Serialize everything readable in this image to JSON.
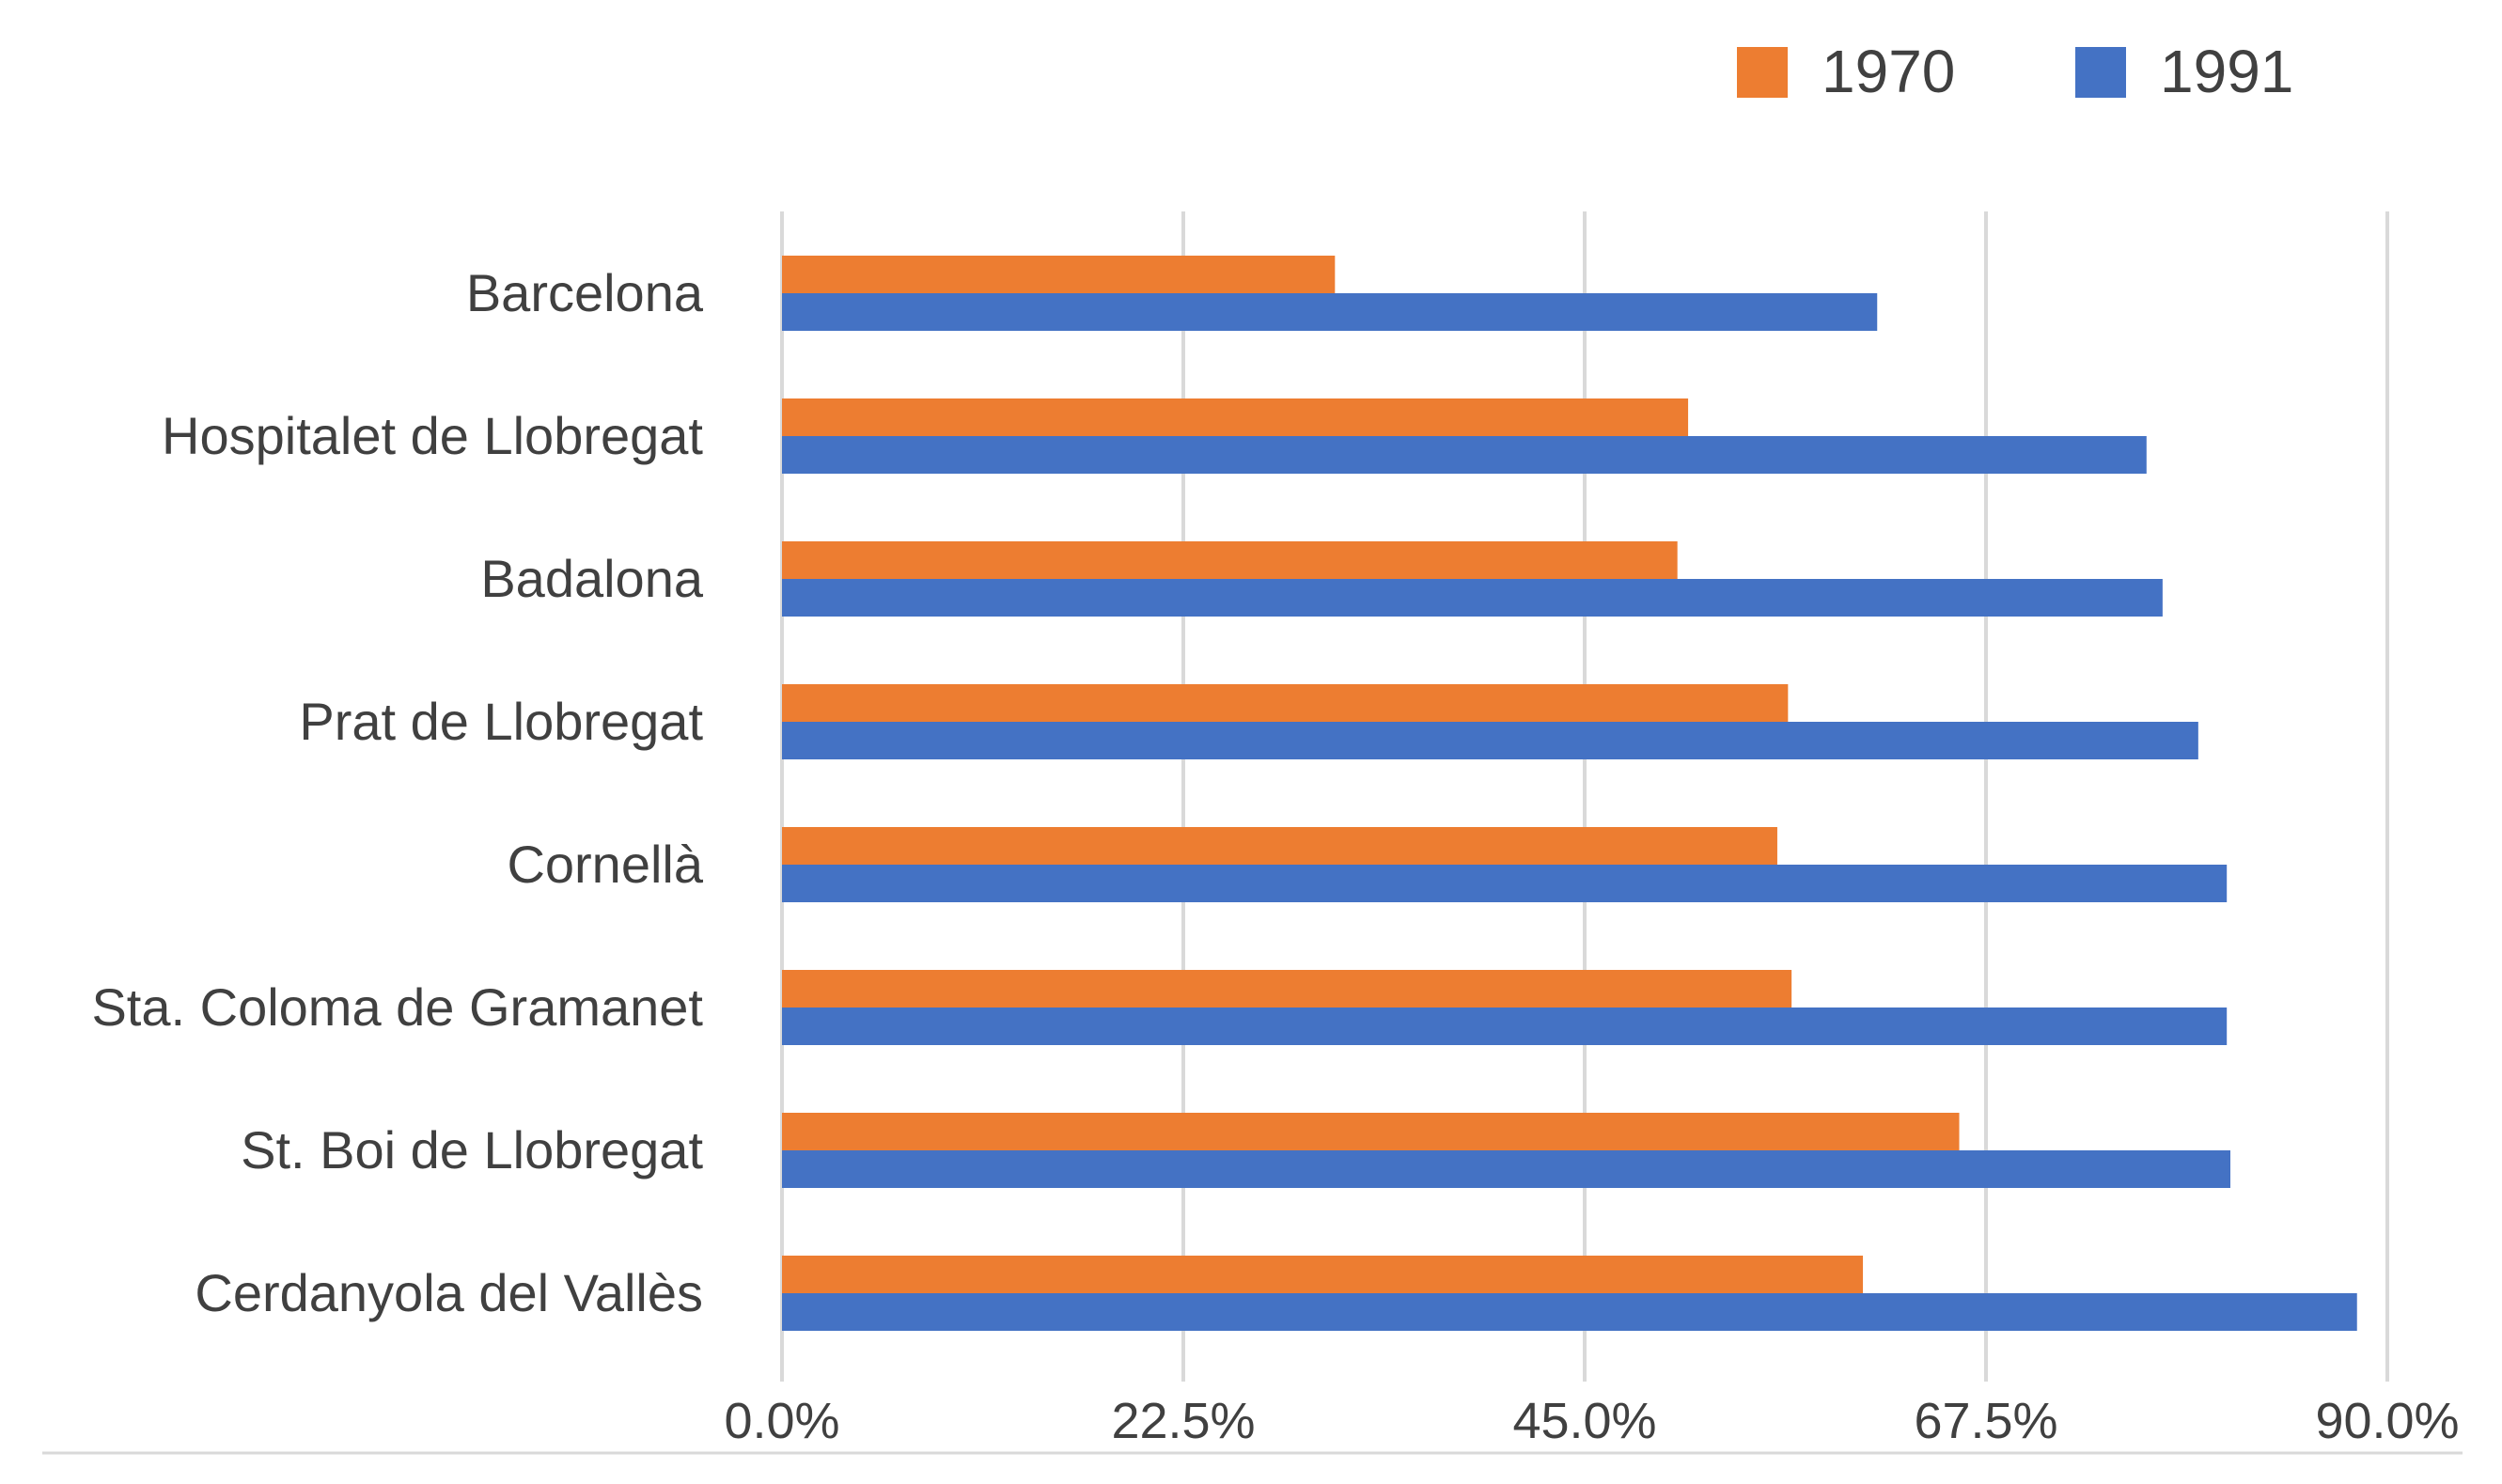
{
  "chart_data": {
    "type": "bar",
    "orientation": "horizontal",
    "title": "",
    "xlabel": "",
    "ylabel": "",
    "categories": [
      "Barcelona",
      "Hospitalet de Llobregat",
      "Badalona",
      "Prat de Llobregat",
      "Cornellà",
      "Sta. Coloma de Gramanet",
      "St. Boi de Llobregat",
      "Cerdanyola del Vallès"
    ],
    "series": [
      {
        "name": "1970",
        "color": "#ED7D31",
        "values": [
          31.0,
          50.8,
          50.2,
          56.4,
          55.8,
          56.6,
          66.0,
          60.6
        ]
      },
      {
        "name": "1991",
        "color": "#4472C4",
        "values": [
          61.4,
          76.5,
          77.4,
          79.4,
          81.0,
          81.0,
          81.2,
          88.3
        ]
      }
    ],
    "xlim": [
      0,
      90
    ],
    "ticks": [
      0,
      22.5,
      45,
      67.5,
      90
    ],
    "tick_labels": [
      "0.0%",
      "22.5%",
      "45.0%",
      "67.5%",
      "90.0%"
    ],
    "grid": true,
    "legend_position": "top-right"
  }
}
